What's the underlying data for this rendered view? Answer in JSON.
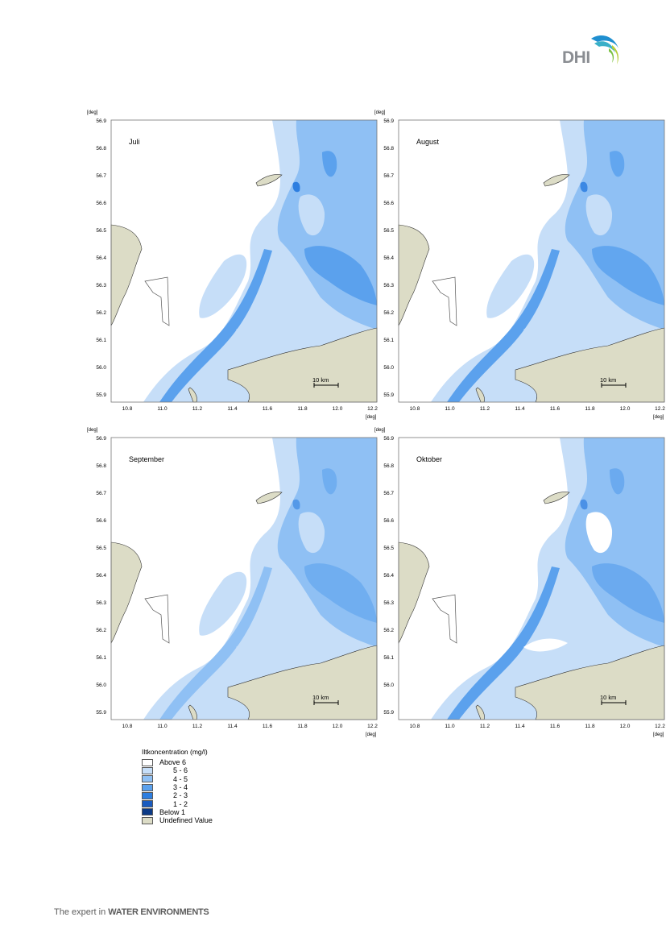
{
  "logo": {
    "text": "DHI"
  },
  "axis_unit": "[deg]",
  "y_ticks": [
    "56.9",
    "56.8",
    "56.7",
    "56.6",
    "56.5",
    "56.4",
    "56.3",
    "56.2",
    "56.1",
    "56.0",
    "55.9"
  ],
  "x_ticks": [
    "10.8",
    "11.0",
    "11.2",
    "11.4",
    "11.6",
    "11.8",
    "12.0",
    "12.2"
  ],
  "scale_bar": "10 km",
  "maps": [
    {
      "title": "Juli"
    },
    {
      "title": "August"
    },
    {
      "title": "September"
    },
    {
      "title": "Oktober"
    }
  ],
  "legend": {
    "title": "Iltkoncentration (mg/l)",
    "items": [
      {
        "label": "Above 6",
        "color": "#ffffff"
      },
      {
        "label": "5 - 6",
        "color": "#c6def8"
      },
      {
        "label": "4 - 5",
        "color": "#8fc0f4"
      },
      {
        "label": "3 - 4",
        "color": "#5ba1ed"
      },
      {
        "label": "2 - 3",
        "color": "#2d7ee0"
      },
      {
        "label": "1 - 2",
        "color": "#1a5bbf"
      },
      {
        "label": "Below 1",
        "color": "#0c3a86"
      },
      {
        "label": "Undefined Value",
        "color": "#dcdcc6"
      }
    ]
  },
  "footer": {
    "prefix": "The expert in ",
    "emphasis": "WATER ENVIRONMENTS"
  }
}
